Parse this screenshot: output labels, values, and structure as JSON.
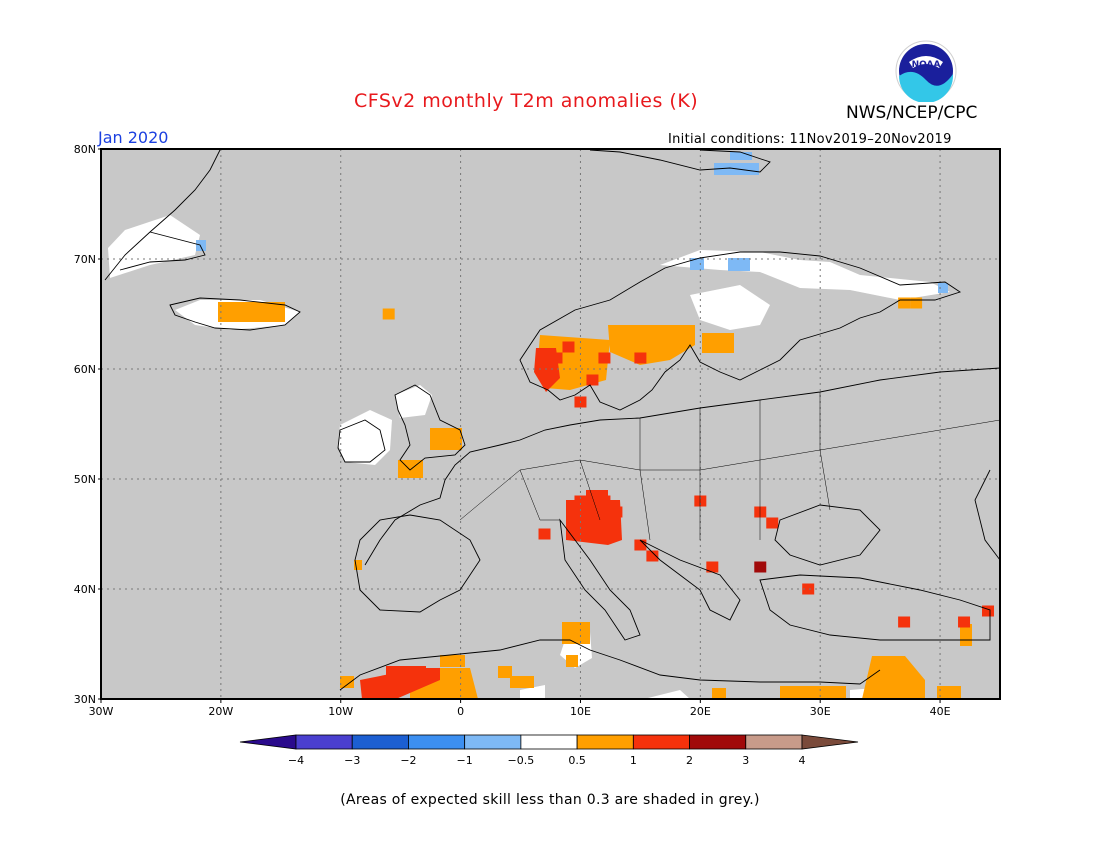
{
  "header": {
    "title": "CFSv2 monthly T2m anomalies (K)",
    "agency": "NWS/NCEP/CPC",
    "logo_text": "NOAA",
    "month": "Jan 2020",
    "initial_conditions": "Initial conditions: 11Nov2019–20Nov2019"
  },
  "map": {
    "background_color": "#c8c8c8",
    "lat_labels": [
      "80N",
      "70N",
      "60N",
      "50N",
      "40N",
      "30N"
    ],
    "lon_labels": [
      "30W",
      "20W",
      "10W",
      "0",
      "10E",
      "20E",
      "30E",
      "40E"
    ],
    "anomaly_cells": [
      {
        "lon": 37,
        "lat": 66,
        "level": "0.5-1"
      },
      {
        "lon": 38,
        "lat": 66,
        "level": "0.5-1"
      },
      {
        "lon": -6,
        "lat": 65,
        "level": "0.5-1"
      },
      {
        "lon": 9,
        "lat": 62,
        "level": "1-2"
      },
      {
        "lon": 8,
        "lat": 61,
        "level": "1-2"
      },
      {
        "lon": 7,
        "lat": 60,
        "level": "1-2"
      },
      {
        "lon": 12,
        "lat": 61,
        "level": "1-2"
      },
      {
        "lon": 15,
        "lat": 61,
        "level": "1-2"
      },
      {
        "lon": 11,
        "lat": 59,
        "level": "1-2"
      },
      {
        "lon": 10,
        "lat": 57,
        "level": "1-2"
      },
      {
        "lon": 10,
        "lat": 48,
        "level": "1-2"
      },
      {
        "lon": 12,
        "lat": 48,
        "level": "1-2"
      },
      {
        "lon": 13,
        "lat": 47,
        "level": "1-2"
      },
      {
        "lon": 20,
        "lat": 48,
        "level": "1-2"
      },
      {
        "lon": 25,
        "lat": 47,
        "level": "1-2"
      },
      {
        "lon": 26,
        "lat": 46,
        "level": "1-2"
      },
      {
        "lon": 7,
        "lat": 45,
        "level": "1-2"
      },
      {
        "lon": 11,
        "lat": 45,
        "level": "1-2"
      },
      {
        "lon": 15,
        "lat": 44,
        "level": "1-2"
      },
      {
        "lon": 16,
        "lat": 43,
        "level": "1-2"
      },
      {
        "lon": 21,
        "lat": 42,
        "level": "1-2"
      },
      {
        "lon": 29,
        "lat": 40,
        "level": "1-2"
      },
      {
        "lon": 25,
        "lat": 42,
        "level": "2-3"
      },
      {
        "lon": 37,
        "lat": 37,
        "level": "1-2"
      },
      {
        "lon": 42,
        "lat": 37,
        "level": "1-2"
      },
      {
        "lon": 44,
        "lat": 38,
        "level": "1-2"
      }
    ]
  },
  "colorbar": {
    "labels": [
      "−4",
      "−3",
      "−2",
      "−1",
      "−0.5",
      "0.5",
      "1",
      "2",
      "3",
      "4"
    ],
    "colors": [
      "#2a0a8c",
      "#4a3fcf",
      "#1c5fd2",
      "#3c8ff0",
      "#7eb9f5",
      "#ffffff",
      "#ff9f00",
      "#f5320c",
      "#a10a0a",
      "#c89b8a",
      "#7a4a3a"
    ]
  },
  "caption": "(Areas of expected skill less than 0.3 are shaded in grey.)"
}
